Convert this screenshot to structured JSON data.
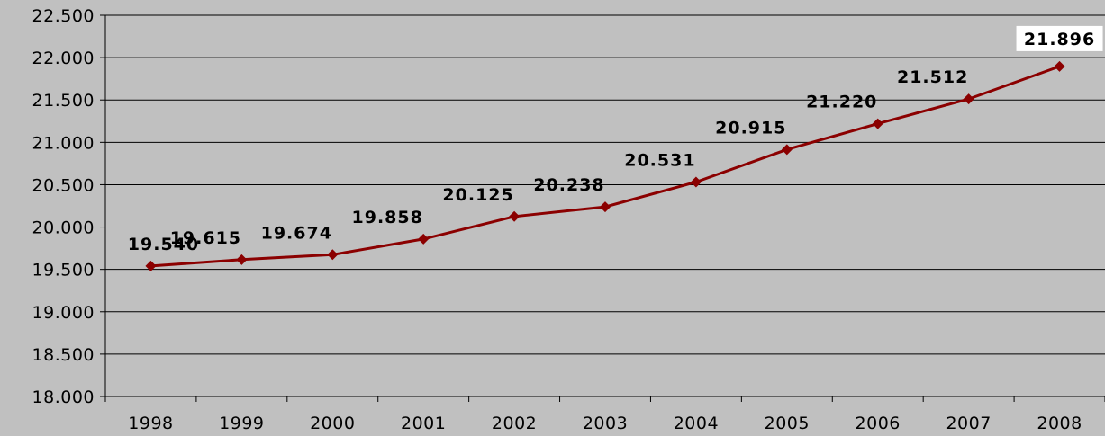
{
  "chart_data": {
    "type": "line",
    "title": "",
    "xlabel": "",
    "ylabel": "",
    "categories": [
      "1998",
      "1999",
      "2000",
      "2001",
      "2002",
      "2003",
      "2004",
      "2005",
      "2006",
      "2007",
      "2008"
    ],
    "values": [
      19540,
      19615,
      19674,
      19858,
      20125,
      20238,
      20531,
      20915,
      21220,
      21512,
      21896
    ],
    "data_labels": [
      "19.540",
      "19.615",
      "19.674",
      "19.858",
      "20.125",
      "20.238",
      "20.531",
      "20.915",
      "21.220",
      "21.512",
      "21.896"
    ],
    "highlighted_label_index": 10,
    "ylim": [
      18000,
      22500
    ],
    "y_ticks": [
      18000,
      18500,
      19000,
      19500,
      20000,
      20500,
      21000,
      21500,
      22000,
      22500
    ],
    "y_tick_labels": [
      "18.000",
      "18.500",
      "19.000",
      "19.500",
      "20.000",
      "20.500",
      "21.000",
      "21.500",
      "22.000",
      "22.500"
    ],
    "grid": true,
    "legend": "none",
    "colors": {
      "series": "#8b0000",
      "background": "#c0c0c0",
      "gridline": "#000000",
      "highlight_box": "#ffffff"
    }
  }
}
